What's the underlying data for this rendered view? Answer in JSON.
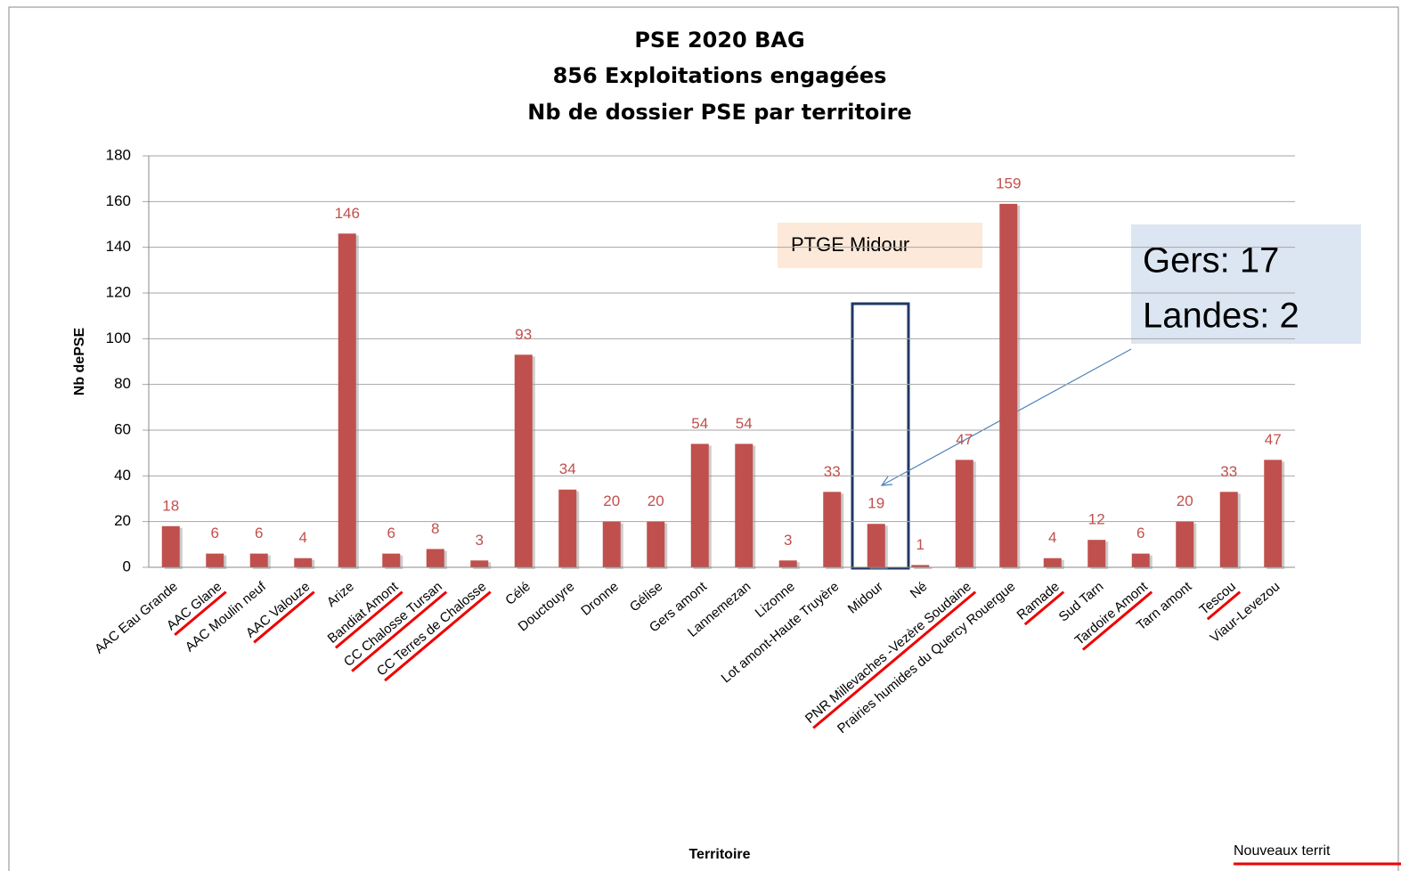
{
  "chart_data": {
    "type": "bar",
    "title": [
      "PSE 2020 BAG",
      "856 Exploitations engagées",
      "Nb de dossier PSE par territoire"
    ],
    "xlabel": "Territoire",
    "ylabel": "Nb dePSE",
    "categories": [
      "AAC Eau Grande",
      "AAC Glane",
      "AAC Moulin neuf",
      "AAC Valouze",
      "Arize",
      "Bandiat Amont",
      "CC Chalosse Tursan",
      "CC Terres de Chalosse",
      "Célé",
      "Douctouyre",
      "Dronne",
      "Gélise",
      "Gers amont",
      "Lannemezan",
      "Lizonne",
      "Lot amont-Haute Truyère",
      "Midour",
      "Né",
      "PNR Millevaches -Vezère Soudaine",
      "Prairies humides du Quercy Rouergue",
      "Ramade",
      "Sud Tarn",
      "Tardoire Amont",
      "Tarn amont",
      "Tescou",
      "Viaur-Levezou"
    ],
    "values": [
      18,
      6,
      6,
      4,
      146,
      6,
      8,
      3,
      93,
      34,
      20,
      20,
      54,
      54,
      3,
      33,
      19,
      1,
      47,
      159,
      4,
      12,
      6,
      20,
      33,
      47
    ],
    "color": "#c0504d",
    "ylim": [
      0,
      180
    ],
    "yticks": [
      0,
      20,
      40,
      60,
      80,
      100,
      120,
      140,
      160,
      180
    ],
    "grid": true,
    "annotations": [
      "PTGE Midour",
      "Gers: 17",
      "Landes: 2",
      "Nouveaux territ"
    ]
  }
}
